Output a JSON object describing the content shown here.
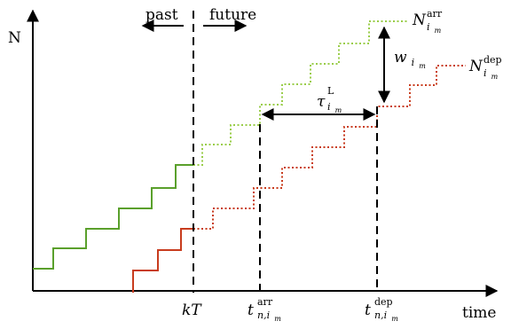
{
  "axes": {
    "y_label": "N",
    "x_label": "time"
  },
  "regions": {
    "past": "past",
    "future": "future"
  },
  "ticks": {
    "kT": "kT",
    "t_arr": {
      "base": "t",
      "sup": "arr",
      "sub": "n,i",
      "subsub": "m"
    },
    "t_dep": {
      "base": "t",
      "sup": "dep",
      "sub": "n,i",
      "subsub": "m"
    }
  },
  "curves": {
    "arrivals": {
      "base": "N",
      "sup": "arr",
      "sub": "i",
      "subsub": "m"
    },
    "departures": {
      "base": "N",
      "sup": "dep",
      "sub": "i",
      "subsub": "m"
    }
  },
  "annotations": {
    "waiting": {
      "base": "w",
      "sub": "i",
      "subsub": "m"
    },
    "travel": {
      "base": "τ",
      "sup": "L",
      "sub": "i",
      "subsub": "m"
    }
  },
  "colors": {
    "arrivals_past": "#5aa02c",
    "arrivals_future": "#9acd4a",
    "departures": "#c83c1e",
    "axis": "#000000"
  }
}
